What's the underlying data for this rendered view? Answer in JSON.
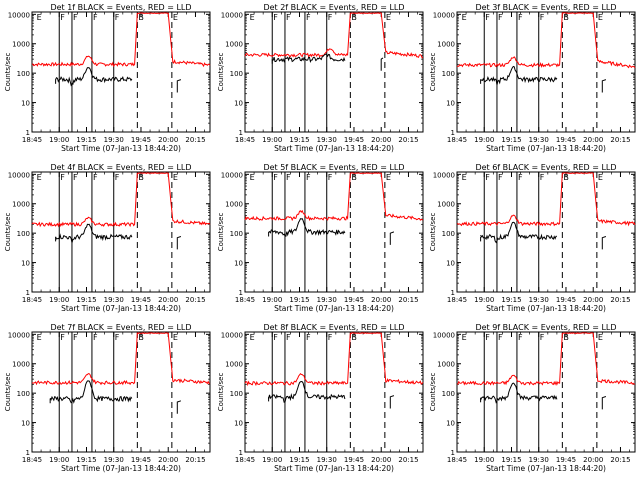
{
  "chart_data": {
    "type": "line",
    "layout": "3x3 grid of panels",
    "shared": {
      "ylabel": "Counts/sec",
      "yscale": "log",
      "ylim": [
        1,
        12000
      ],
      "yticks": [
        {
          "v": 1,
          "label": "1"
        },
        {
          "v": 10,
          "label": "10"
        },
        {
          "v": 100,
          "label": "100"
        },
        {
          "v": 1000,
          "label": "1000"
        },
        {
          "v": 10000,
          "label": "10000"
        }
      ],
      "xlim": [
        "18:45",
        "20:23"
      ],
      "xticks": [
        "18:45",
        "19:00",
        "19:15",
        "19:30",
        "19:45",
        "20:00",
        "20:15"
      ],
      "xlabel": "Start Time (07-Jan-13 18:44:20)",
      "series_names": [
        "BLACK = Events",
        "RED = LLD"
      ],
      "series_colors": {
        "events": "#000000",
        "lld": "#ff0000"
      }
    },
    "panels": [
      {
        "title": "Det 1f BLACK = Events, RED = LLD",
        "markers": [
          {
            "t": "18:47",
            "label": "E"
          },
          {
            "t": "19:00",
            "label": "F"
          },
          {
            "t": "19:07",
            "label": "F"
          },
          {
            "t": "19:18",
            "label": "F"
          },
          {
            "t": "19:30",
            "label": "F"
          },
          {
            "t": "19:43",
            "label": "B"
          },
          {
            "t": "20:02",
            "label": "E"
          }
        ],
        "dashed": [
          "19:43",
          "20:02"
        ],
        "events": {
          "seg1_start": "18:58",
          "seg1_end": "19:40",
          "base": 62,
          "peak_t": "19:16",
          "peak": 160,
          "dip_t": "19:07",
          "dip": 48,
          "seg2_start": "20:05",
          "seg2_end": "20:07",
          "seg2_val": 55
        },
        "lld": {
          "start": "18:45",
          "base": 200,
          "peak_t": "19:16",
          "peak": 380,
          "rise_t": "19:43",
          "top": 11000,
          "fall_t": "20:00",
          "after": 250,
          "end_val": 185
        }
      },
      {
        "title": "Det 2f BLACK = Events, RED = LLD",
        "markers": [
          {
            "t": "18:47",
            "label": "E"
          },
          {
            "t": "19:00",
            "label": "F"
          },
          {
            "t": "19:07",
            "label": "F"
          },
          {
            "t": "19:18",
            "label": "F"
          },
          {
            "t": "19:30",
            "label": "F"
          },
          {
            "t": "19:43",
            "label": "B"
          },
          {
            "t": "20:02",
            "label": "E"
          }
        ],
        "dashed": [
          "19:43",
          "20:02"
        ],
        "events": {
          "seg1_start": "19:00",
          "seg1_end": "19:40",
          "base": 300,
          "peak_t": "19:30",
          "peak": 430,
          "dip_t": "19:10",
          "dip": 300,
          "seg2_start": "20:00",
          "seg2_end": "20:01",
          "seg2_val": 300
        },
        "lld": {
          "start": "18:45",
          "base": 420,
          "peak_t": "19:32",
          "peak": 700,
          "rise_t": "19:43",
          "top": 11000,
          "fall_t": "20:00",
          "after": 500,
          "end_val": 380
        }
      },
      {
        "title": "Det 3f BLACK = Events, RED = LLD",
        "markers": [
          {
            "t": "18:47",
            "label": "E"
          },
          {
            "t": "19:00",
            "label": "F"
          },
          {
            "t": "19:07",
            "label": "F"
          },
          {
            "t": "19:18",
            "label": "F"
          },
          {
            "t": "19:30",
            "label": "F"
          },
          {
            "t": "19:43",
            "label": "B"
          },
          {
            "t": "20:02",
            "label": "E"
          }
        ],
        "dashed": [
          "19:43",
          "20:02"
        ],
        "events": {
          "seg1_start": "18:58",
          "seg1_end": "19:40",
          "base": 62,
          "peak_t": "19:16",
          "peak": 160,
          "dip_t": "19:07",
          "dip": 48,
          "seg2_start": "20:05",
          "seg2_end": "20:07",
          "seg2_val": 55
        },
        "lld": {
          "start": "18:45",
          "base": 190,
          "peak_t": "19:16",
          "peak": 350,
          "rise_t": "19:43",
          "top": 11000,
          "fall_t": "20:00",
          "after": 250,
          "end_val": 160
        }
      },
      {
        "title": "Det 4f BLACK = Events, RED = LLD",
        "markers": [
          {
            "t": "18:47",
            "label": "E"
          },
          {
            "t": "19:00",
            "label": "F"
          },
          {
            "t": "19:07",
            "label": "F"
          },
          {
            "t": "19:18",
            "label": "F"
          },
          {
            "t": "19:30",
            "label": "F"
          },
          {
            "t": "19:43",
            "label": "B"
          },
          {
            "t": "20:02",
            "label": "E"
          }
        ],
        "dashed": [
          "19:43",
          "20:02"
        ],
        "events": {
          "seg1_start": "18:58",
          "seg1_end": "19:40",
          "base": 75,
          "peak_t": "19:16",
          "peak": 200,
          "dip_t": "19:07",
          "dip": 60,
          "seg2_start": "20:05",
          "seg2_end": "20:07",
          "seg2_val": 70
        },
        "lld": {
          "start": "18:45",
          "base": 200,
          "peak_t": "19:16",
          "peak": 330,
          "rise_t": "19:43",
          "top": 11000,
          "fall_t": "20:00",
          "after": 260,
          "end_val": 200
        }
      },
      {
        "title": "Det 5f BLACK = Events, RED = LLD",
        "markers": [
          {
            "t": "18:47",
            "label": "E"
          },
          {
            "t": "19:00",
            "label": "F"
          },
          {
            "t": "19:07",
            "label": "F"
          },
          {
            "t": "19:18",
            "label": "F"
          },
          {
            "t": "19:30",
            "label": "F"
          },
          {
            "t": "19:43",
            "label": "B"
          },
          {
            "t": "20:02",
            "label": "E"
          }
        ],
        "dashed": [
          "19:43",
          "20:02"
        ],
        "events": {
          "seg1_start": "18:58",
          "seg1_end": "19:40",
          "base": 110,
          "peak_t": "19:16",
          "peak": 320,
          "dip_t": "19:07",
          "dip": 90,
          "seg2_start": "20:05",
          "seg2_end": "20:07",
          "seg2_val": 100
        },
        "lld": {
          "start": "18:45",
          "base": 320,
          "peak_t": "19:16",
          "peak": 560,
          "rise_t": "19:43",
          "top": 11000,
          "fall_t": "20:00",
          "after": 400,
          "end_val": 300
        }
      },
      {
        "title": "Det 6f BLACK = Events, RED = LLD",
        "markers": [
          {
            "t": "18:47",
            "label": "E"
          },
          {
            "t": "19:00",
            "label": "F"
          },
          {
            "t": "19:07",
            "label": "F"
          },
          {
            "t": "19:18",
            "label": "F"
          },
          {
            "t": "19:30",
            "label": "F"
          },
          {
            "t": "19:43",
            "label": "B"
          },
          {
            "t": "20:02",
            "label": "E"
          }
        ],
        "dashed": [
          "19:43",
          "20:02"
        ],
        "events": {
          "seg1_start": "18:58",
          "seg1_end": "19:40",
          "base": 75,
          "peak_t": "19:16",
          "peak": 230,
          "dip_t": "19:07",
          "dip": 60,
          "seg2_start": "20:05",
          "seg2_end": "20:07",
          "seg2_val": 70
        },
        "lld": {
          "start": "18:45",
          "base": 210,
          "peak_t": "19:16",
          "peak": 400,
          "rise_t": "19:43",
          "top": 11000,
          "fall_t": "20:00",
          "after": 260,
          "end_val": 210
        }
      },
      {
        "title": "Det 7f BLACK = Events, RED = LLD",
        "markers": [
          {
            "t": "18:47",
            "label": "E"
          },
          {
            "t": "19:00",
            "label": "F"
          },
          {
            "t": "19:07",
            "label": "F"
          },
          {
            "t": "19:18",
            "label": "F"
          },
          {
            "t": "19:30",
            "label": "F"
          },
          {
            "t": "19:43",
            "label": "B"
          },
          {
            "t": "20:02",
            "label": "E"
          }
        ],
        "dashed": [
          "19:43",
          "20:02"
        ],
        "events": {
          "seg1_start": "18:55",
          "seg1_end": "19:40",
          "base": 65,
          "peak_t": "19:16",
          "peak": 270,
          "dip_t": "19:07",
          "dip": 50,
          "seg2_start": "20:05",
          "seg2_end": "20:07",
          "seg2_val": 50
        },
        "lld": {
          "start": "18:45",
          "base": 230,
          "peak_t": "19:16",
          "peak": 450,
          "rise_t": "19:43",
          "top": 11000,
          "fall_t": "20:00",
          "after": 280,
          "end_val": 230
        }
      },
      {
        "title": "Det 8f BLACK = Events, RED = LLD",
        "markers": [
          {
            "t": "18:47",
            "label": "E"
          },
          {
            "t": "19:00",
            "label": "F"
          },
          {
            "t": "19:07",
            "label": "F"
          },
          {
            "t": "19:18",
            "label": "F"
          },
          {
            "t": "19:30",
            "label": "F"
          },
          {
            "t": "19:43",
            "label": "B"
          },
          {
            "t": "20:02",
            "label": "E"
          }
        ],
        "dashed": [
          "19:43",
          "20:02"
        ],
        "events": {
          "seg1_start": "18:58",
          "seg1_end": "19:40",
          "base": 75,
          "peak_t": "19:16",
          "peak": 260,
          "dip_t": "19:07",
          "dip": 60,
          "seg2_start": "20:05",
          "seg2_end": "20:07",
          "seg2_val": 75
        },
        "lld": {
          "start": "18:45",
          "base": 220,
          "peak_t": "19:16",
          "peak": 450,
          "rise_t": "19:43",
          "top": 11000,
          "fall_t": "20:00",
          "after": 270,
          "end_val": 220
        }
      },
      {
        "title": "Det 9f BLACK = Events, RED = LLD",
        "markers": [
          {
            "t": "18:47",
            "label": "E"
          },
          {
            "t": "19:00",
            "label": "F"
          },
          {
            "t": "19:07",
            "label": "F"
          },
          {
            "t": "19:18",
            "label": "F"
          },
          {
            "t": "19:30",
            "label": "F"
          },
          {
            "t": "19:43",
            "label": "B"
          },
          {
            "t": "20:02",
            "label": "E"
          }
        ],
        "dashed": [
          "19:43",
          "20:02"
        ],
        "events": {
          "seg1_start": "18:58",
          "seg1_end": "19:40",
          "base": 70,
          "peak_t": "19:16",
          "peak": 230,
          "dip_t": "19:07",
          "dip": 55,
          "seg2_start": "20:05",
          "seg2_end": "20:07",
          "seg2_val": 70
        },
        "lld": {
          "start": "18:45",
          "base": 220,
          "peak_t": "19:16",
          "peak": 400,
          "rise_t": "19:43",
          "top": 11000,
          "fall_t": "20:00",
          "after": 270,
          "end_val": 220
        }
      }
    ]
  }
}
